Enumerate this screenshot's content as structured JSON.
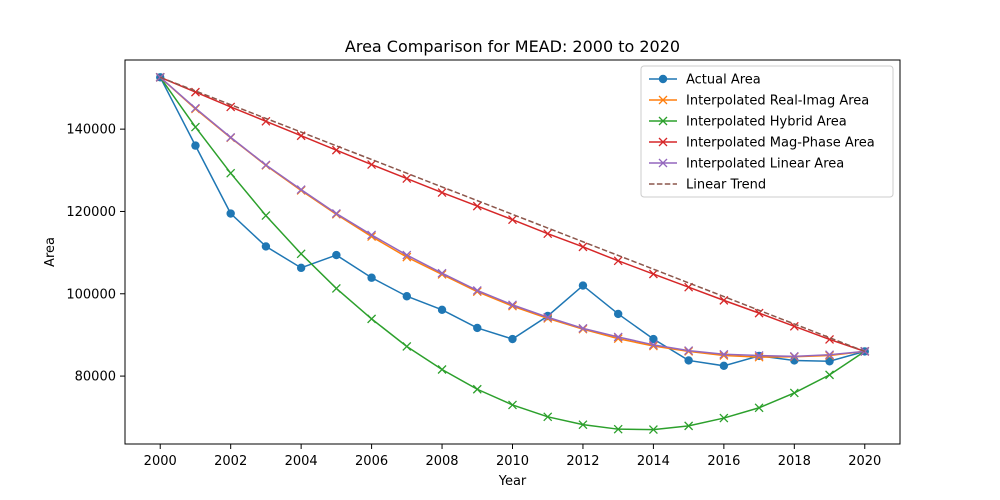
{
  "chart_data": {
    "type": "line",
    "title": "Area Comparison for MEAD: 2000 to 2020",
    "xlabel": "Year",
    "ylabel": "Area",
    "x": [
      2000,
      2001,
      2002,
      2003,
      2004,
      2005,
      2006,
      2007,
      2008,
      2009,
      2010,
      2011,
      2012,
      2013,
      2014,
      2015,
      2016,
      2017,
      2018,
      2019,
      2020
    ],
    "xticks": [
      "2000",
      "2002",
      "2004",
      "2006",
      "2008",
      "2010",
      "2012",
      "2014",
      "2016",
      "2018",
      "2020"
    ],
    "yticks": [
      "80000",
      "100000",
      "120000",
      "140000"
    ],
    "xlim": [
      1999.0,
      2021.0
    ],
    "ylim": [
      63500,
      156800
    ],
    "grid": false,
    "legend_position": "top-right",
    "series": [
      {
        "name": "Actual Area",
        "color": "#1f77b4",
        "marker": "circle",
        "dashed": false,
        "values": [
          152600,
          136000,
          119500,
          111500,
          106300,
          109400,
          103900,
          99400,
          96100,
          91700,
          89000,
          94600,
          102000,
          95100,
          89000,
          83800,
          82500,
          84900,
          83800,
          83600,
          86000
        ]
      },
      {
        "name": "Interpolated Real-Imag Area",
        "color": "#ff7f0e",
        "marker": "x",
        "dashed": false,
        "values": [
          152600,
          144900,
          137900,
          131200,
          125100,
          119300,
          113900,
          108900,
          104700,
          100500,
          97000,
          94000,
          91400,
          89100,
          87300,
          86000,
          85000,
          84600,
          84700,
          85000,
          86000
        ]
      },
      {
        "name": "Interpolated Hybrid Area",
        "color": "#2ca02c",
        "marker": "x",
        "dashed": false,
        "values": [
          152600,
          140500,
          129300,
          119000,
          109700,
          101300,
          93900,
          87200,
          81600,
          76800,
          73000,
          70100,
          68200,
          67100,
          67000,
          67900,
          69800,
          72300,
          75900,
          80300,
          86000
        ]
      },
      {
        "name": "Interpolated Mag-Phase Area",
        "color": "#d62728",
        "marker": "x",
        "dashed": false,
        "values": [
          152600,
          149000,
          145400,
          141900,
          138400,
          134900,
          131400,
          128000,
          124600,
          121300,
          118000,
          114600,
          111400,
          108000,
          104800,
          101600,
          98400,
          95300,
          92100,
          88900,
          86000
        ]
      },
      {
        "name": "Interpolated Linear Area",
        "color": "#9467bd",
        "marker": "x",
        "dashed": false,
        "values": [
          152600,
          145100,
          138000,
          131300,
          125300,
          119500,
          114300,
          109400,
          105000,
          100800,
          97300,
          94300,
          91600,
          89500,
          87600,
          86200,
          85300,
          85000,
          84800,
          85200,
          86000
        ]
      },
      {
        "name": "Linear Trend",
        "color": "#8c564b",
        "marker": "none",
        "dashed": true,
        "values": [
          152600,
          149270,
          145940,
          142610,
          139280,
          135950,
          132620,
          129290,
          125960,
          122630,
          119300,
          115970,
          112640,
          109310,
          105980,
          102650,
          99320,
          95990,
          92660,
          89330,
          86000
        ]
      }
    ]
  }
}
